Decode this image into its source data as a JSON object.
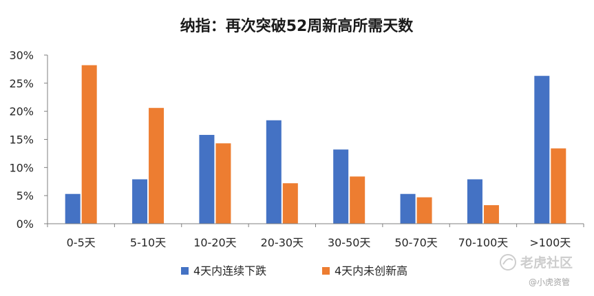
{
  "chart_data": {
    "type": "bar",
    "title": "纳指：再次突破52周新高所需天数",
    "categories": [
      "0-5天",
      "5-10天",
      "10-20天",
      "20-30天",
      "30-50天",
      "50-70天",
      "70-100天",
      ">100天"
    ],
    "series": [
      {
        "name": "4天内连续下跌",
        "color": "#4472C4",
        "values": [
          5.3,
          7.9,
          15.8,
          18.4,
          13.2,
          5.3,
          7.9,
          26.3
        ]
      },
      {
        "name": "4天内未创新高",
        "color": "#ED7D31",
        "values": [
          28.2,
          20.6,
          14.3,
          7.2,
          8.4,
          4.7,
          3.3,
          13.4
        ]
      }
    ],
    "ylim": [
      0,
      30
    ],
    "yticks": [
      0,
      5,
      10,
      15,
      20,
      25,
      30
    ],
    "ytick_labels": [
      "0%",
      "5%",
      "10%",
      "15%",
      "20%",
      "25%",
      "30%"
    ],
    "grid": false,
    "legend_position": "bottom"
  },
  "watermark": {
    "brand": "老虎社区",
    "handle": "@小虎资管"
  }
}
